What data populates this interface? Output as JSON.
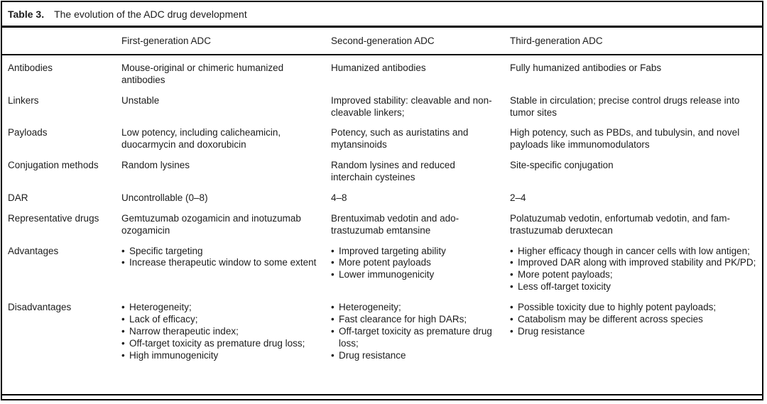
{
  "colors": {
    "text": "#1c1c1c",
    "rule": "#000000",
    "background": "#ffffff"
  },
  "caption": {
    "label": "Table 3.",
    "text": "The evolution of the ADC drug development"
  },
  "columns": {
    "gen1": "First-generation ADC",
    "gen2": "Second-generation ADC",
    "gen3": "Third-generation ADC"
  },
  "rows": [
    {
      "label": "Antibodies",
      "cells": [
        {
          "text": "Mouse-original or chimeric humanized antibodies"
        },
        {
          "text": "Humanized antibodies"
        },
        {
          "text": "Fully humanized antibodies or Fabs"
        }
      ]
    },
    {
      "label": "Linkers",
      "cells": [
        {
          "text": "Unstable"
        },
        {
          "text": "Improved stability: cleavable and non-cleavable linkers;"
        },
        {
          "text": "Stable in circulation; precise control drugs release into tumor sites"
        }
      ]
    },
    {
      "label": "Payloads",
      "cells": [
        {
          "text": "Low potency, including calicheamicin, duocarmycin and doxorubicin"
        },
        {
          "text": "Potency, such as auristatins and mytansinoids"
        },
        {
          "text": "High potency, such as PBDs, and tubulysin, and novel payloads like immunomodulators"
        }
      ]
    },
    {
      "label": "Conjugation methods",
      "cells": [
        {
          "text": "Random lysines"
        },
        {
          "text": "Random lysines and reduced interchain cysteines"
        },
        {
          "text": "Site-specific conjugation"
        }
      ]
    },
    {
      "label": "DAR",
      "cells": [
        {
          "text": "Uncontrollable (0–8)"
        },
        {
          "text": "4–8"
        },
        {
          "text": "2–4"
        }
      ]
    },
    {
      "label": "Representative drugs",
      "cells": [
        {
          "text": "Gemtuzumab ozogamicin and inotuzumab ozogamicin"
        },
        {
          "text": "Brentuximab vedotin and ado-trastuzumab emtansine"
        },
        {
          "text": "Polatuzumab vedotin, enfortumab vedotin, and fam-trastuzumab deruxtecan"
        }
      ]
    },
    {
      "label": "Advantages",
      "cells": [
        {
          "bullets": [
            "Specific targeting",
            "Increase therapeutic window to some extent"
          ]
        },
        {
          "bullets": [
            "Improved targeting ability",
            "More potent payloads",
            "Lower immunogenicity"
          ]
        },
        {
          "bullets": [
            "Higher efficacy though in cancer cells with low antigen;",
            "Improved DAR along with improved stability and PK/PD;",
            "More potent payloads;",
            "Less off-target toxicity"
          ]
        }
      ]
    },
    {
      "label": "Disadvantages",
      "cells": [
        {
          "bullets": [
            "Heterogeneity;",
            "Lack of efficacy;",
            "Narrow therapeutic index;",
            "Off-target toxicity as premature drug loss;",
            "High immunogenicity"
          ]
        },
        {
          "bullets": [
            "Heterogeneity;",
            "Fast clearance for high DARs;",
            "Off-target toxicity as premature drug loss;",
            "Drug resistance"
          ]
        },
        {
          "bullets": [
            "Possible toxicity due to highly potent payloads;",
            "Catabolism may be different across species",
            "Drug resistance"
          ]
        }
      ]
    }
  ]
}
